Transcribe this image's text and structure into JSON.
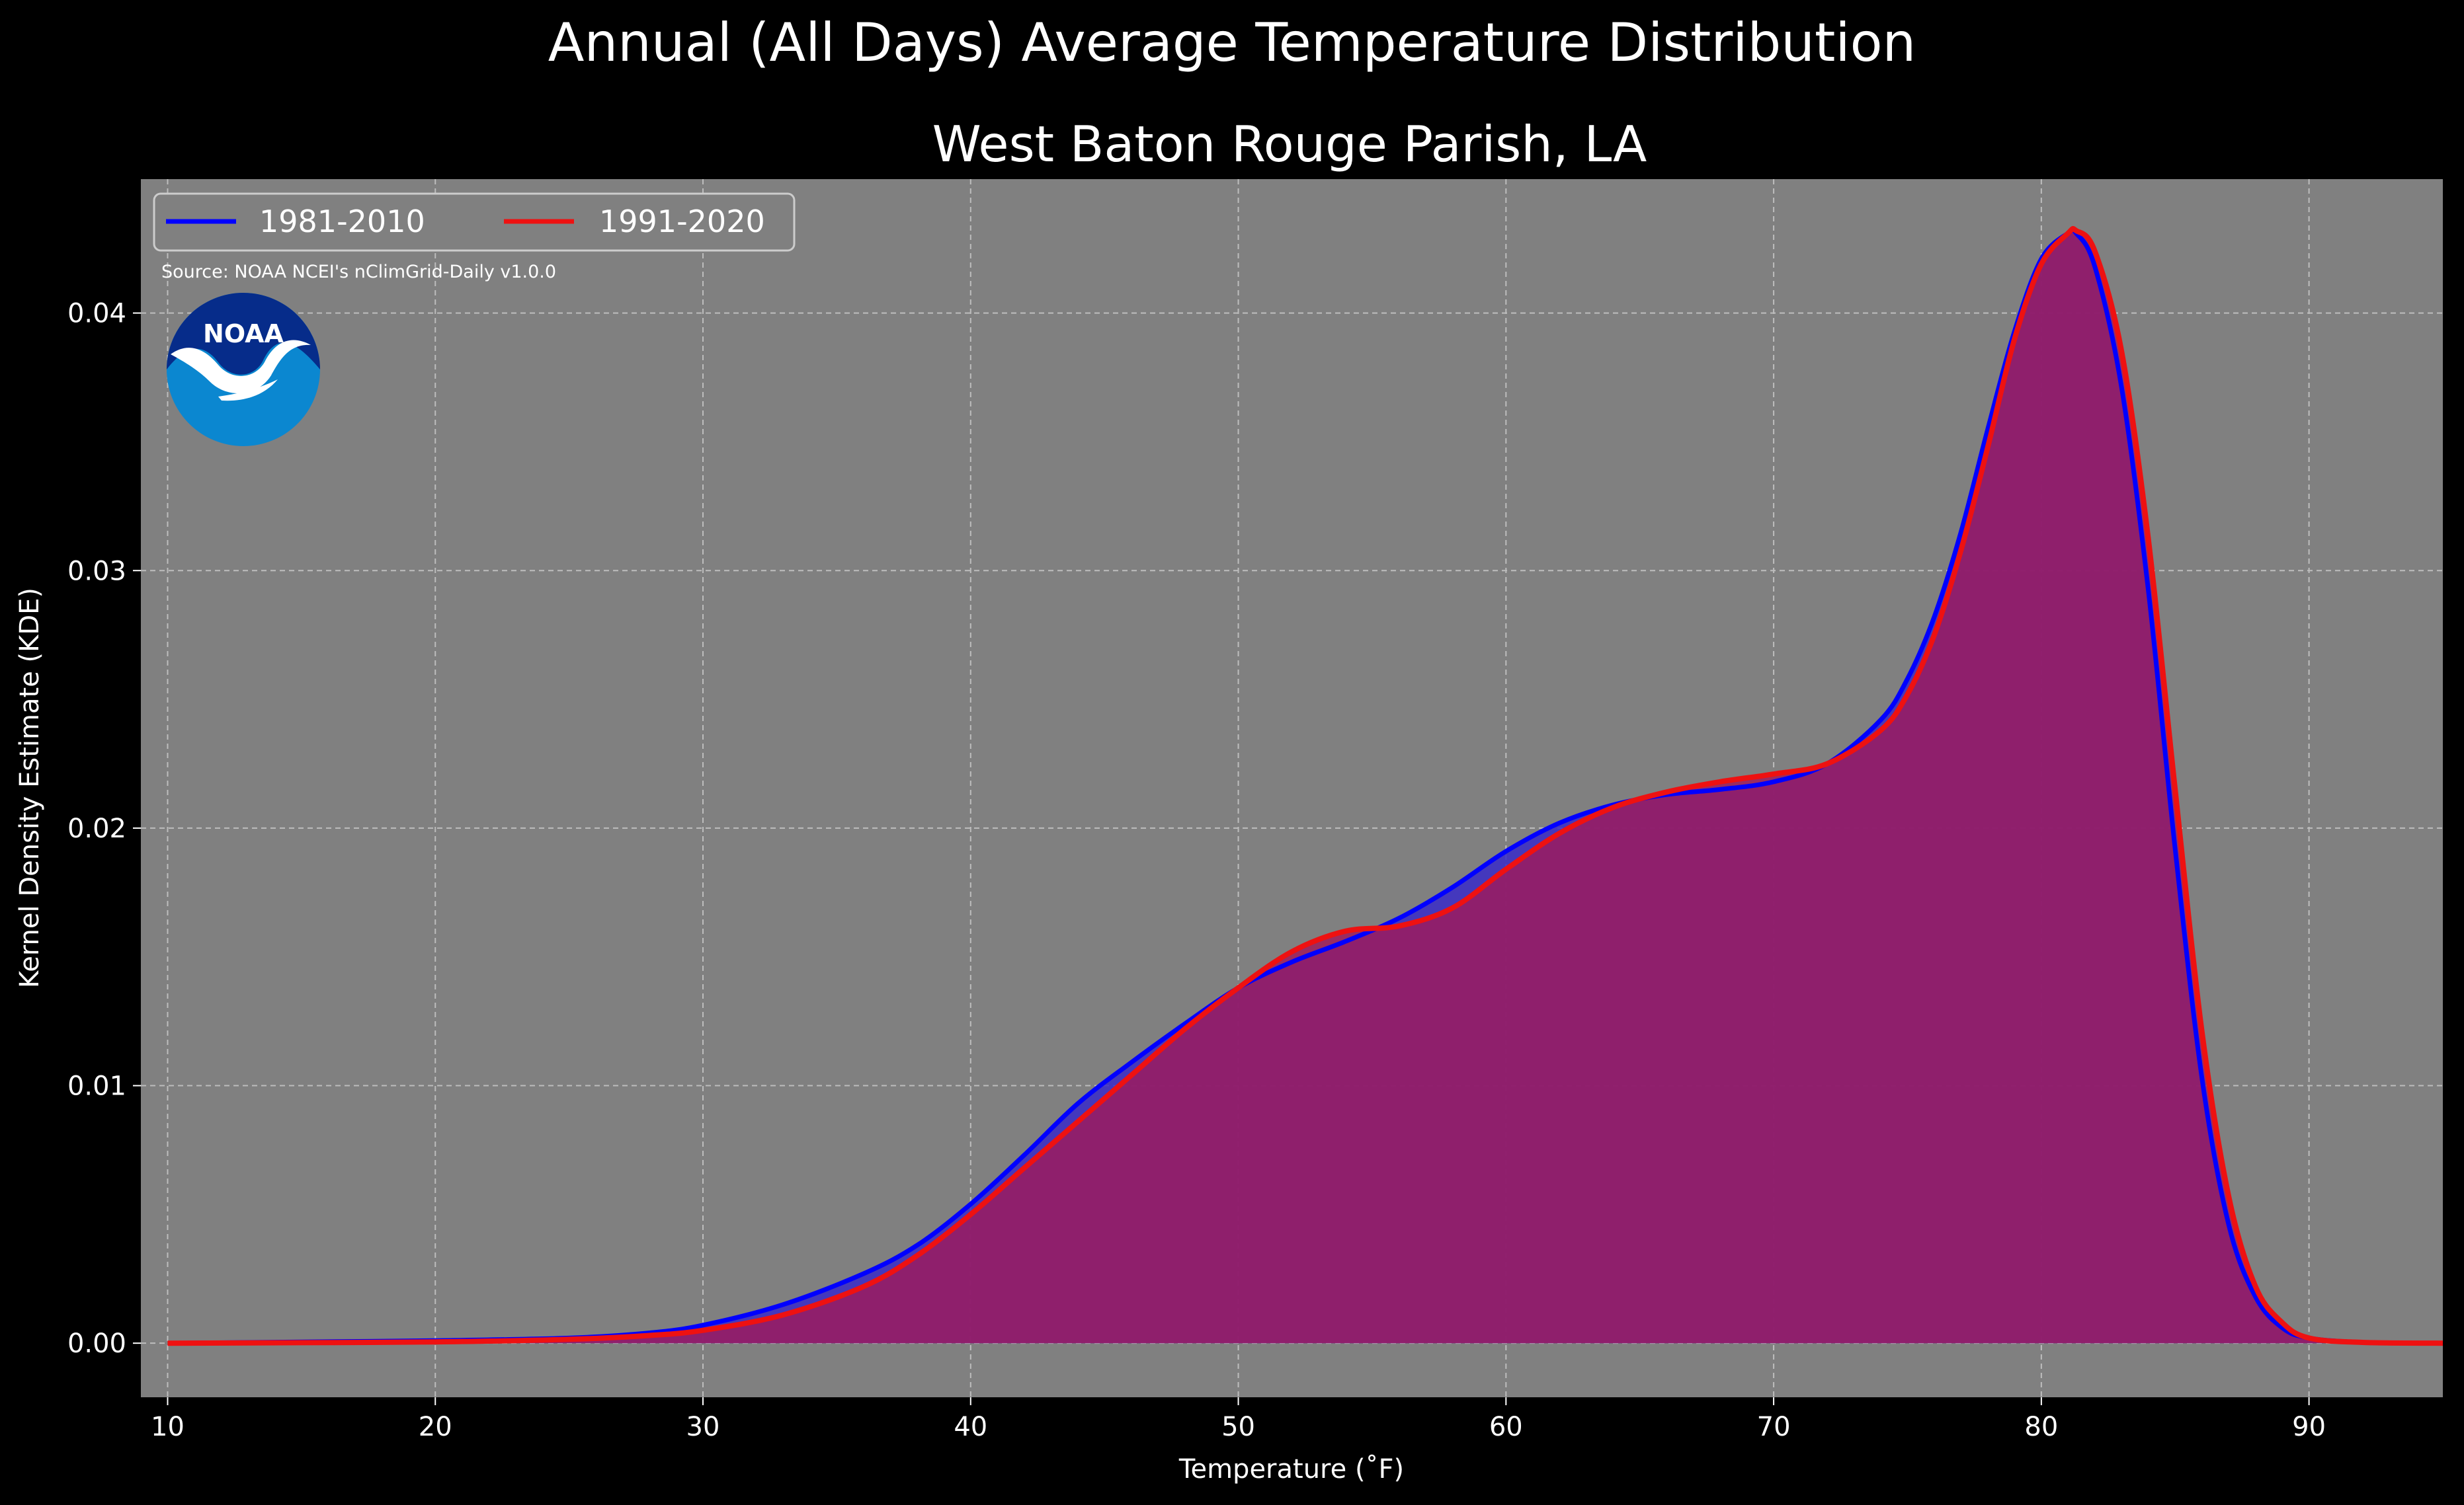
{
  "chart_data": {
    "type": "area",
    "title": "Annual (All Days) Average Temperature Distribution",
    "subtitle": "West Baton Rouge Parish, LA",
    "xlabel": "Temperature (˚F)",
    "ylabel": "Kernel Density Estimate (KDE)",
    "xlim": [
      9,
      95
    ],
    "ylim": [
      -0.0021,
      0.0452
    ],
    "xticks": [
      10,
      20,
      30,
      40,
      50,
      60,
      70,
      80,
      90
    ],
    "yticks": [
      0.0,
      0.01,
      0.02,
      0.03,
      0.04
    ],
    "ytick_labels": [
      "0.00",
      "0.01",
      "0.02",
      "0.03",
      "0.04"
    ],
    "grid": true,
    "legend_position": "top-left",
    "source": "Source: NOAA NCEI's nClimGrid-Daily v1.0.0",
    "logo_text": "NOAA",
    "series": [
      {
        "name": "1981-2010",
        "color": "#0000ff",
        "fill": "#3a2cc8",
        "x": [
          10,
          15,
          20,
          25,
          28,
          30,
          33,
          36,
          38,
          40,
          42,
          44,
          46,
          48,
          50,
          52,
          54,
          56,
          58,
          60,
          62,
          64,
          66,
          68,
          70,
          72,
          74,
          75,
          76,
          77,
          78,
          79,
          80,
          81,
          81.3,
          82,
          83,
          84,
          85,
          86,
          87,
          88,
          89,
          90,
          92,
          95
        ],
        "y": [
          0.0,
          5e-05,
          0.0001,
          0.0002,
          0.0004,
          0.0007,
          0.0015,
          0.0027,
          0.0038,
          0.0054,
          0.0073,
          0.0093,
          0.0109,
          0.0124,
          0.0138,
          0.0148,
          0.0156,
          0.0165,
          0.0177,
          0.0191,
          0.0202,
          0.0209,
          0.0213,
          0.0215,
          0.0218,
          0.0225,
          0.0242,
          0.0258,
          0.0282,
          0.0315,
          0.0355,
          0.0393,
          0.0421,
          0.0431,
          0.0431,
          0.0418,
          0.0371,
          0.0292,
          0.0192,
          0.0103,
          0.0046,
          0.0018,
          0.0006,
          0.0002,
          3e-05,
          0.0
        ]
      },
      {
        "name": "1991-2020",
        "color": "#ee1111",
        "fill": "#a01a5a",
        "x": [
          10,
          15,
          20,
          25,
          28,
          30,
          33,
          36,
          38,
          40,
          42,
          44,
          46,
          48,
          50,
          52,
          54,
          56,
          58,
          60,
          62,
          64,
          66,
          68,
          70,
          72,
          74,
          75,
          76,
          77,
          78,
          79,
          80,
          81,
          81.3,
          82,
          83,
          84,
          85,
          86,
          87,
          88,
          89,
          90,
          92,
          95
        ],
        "y": [
          0.0,
          2e-05,
          5e-05,
          0.00015,
          0.0003,
          0.0005,
          0.0011,
          0.0022,
          0.0034,
          0.005,
          0.0068,
          0.0086,
          0.0104,
          0.0122,
          0.0138,
          0.0152,
          0.016,
          0.0162,
          0.0169,
          0.0184,
          0.0198,
          0.0208,
          0.0214,
          0.0218,
          0.0221,
          0.0225,
          0.0238,
          0.0252,
          0.0275,
          0.0308,
          0.0348,
          0.039,
          0.0419,
          0.0431,
          0.0432,
          0.0424,
          0.0385,
          0.0312,
          0.0215,
          0.0121,
          0.0057,
          0.0022,
          0.0008,
          0.0002,
          3e-05,
          0.0
        ]
      }
    ]
  }
}
